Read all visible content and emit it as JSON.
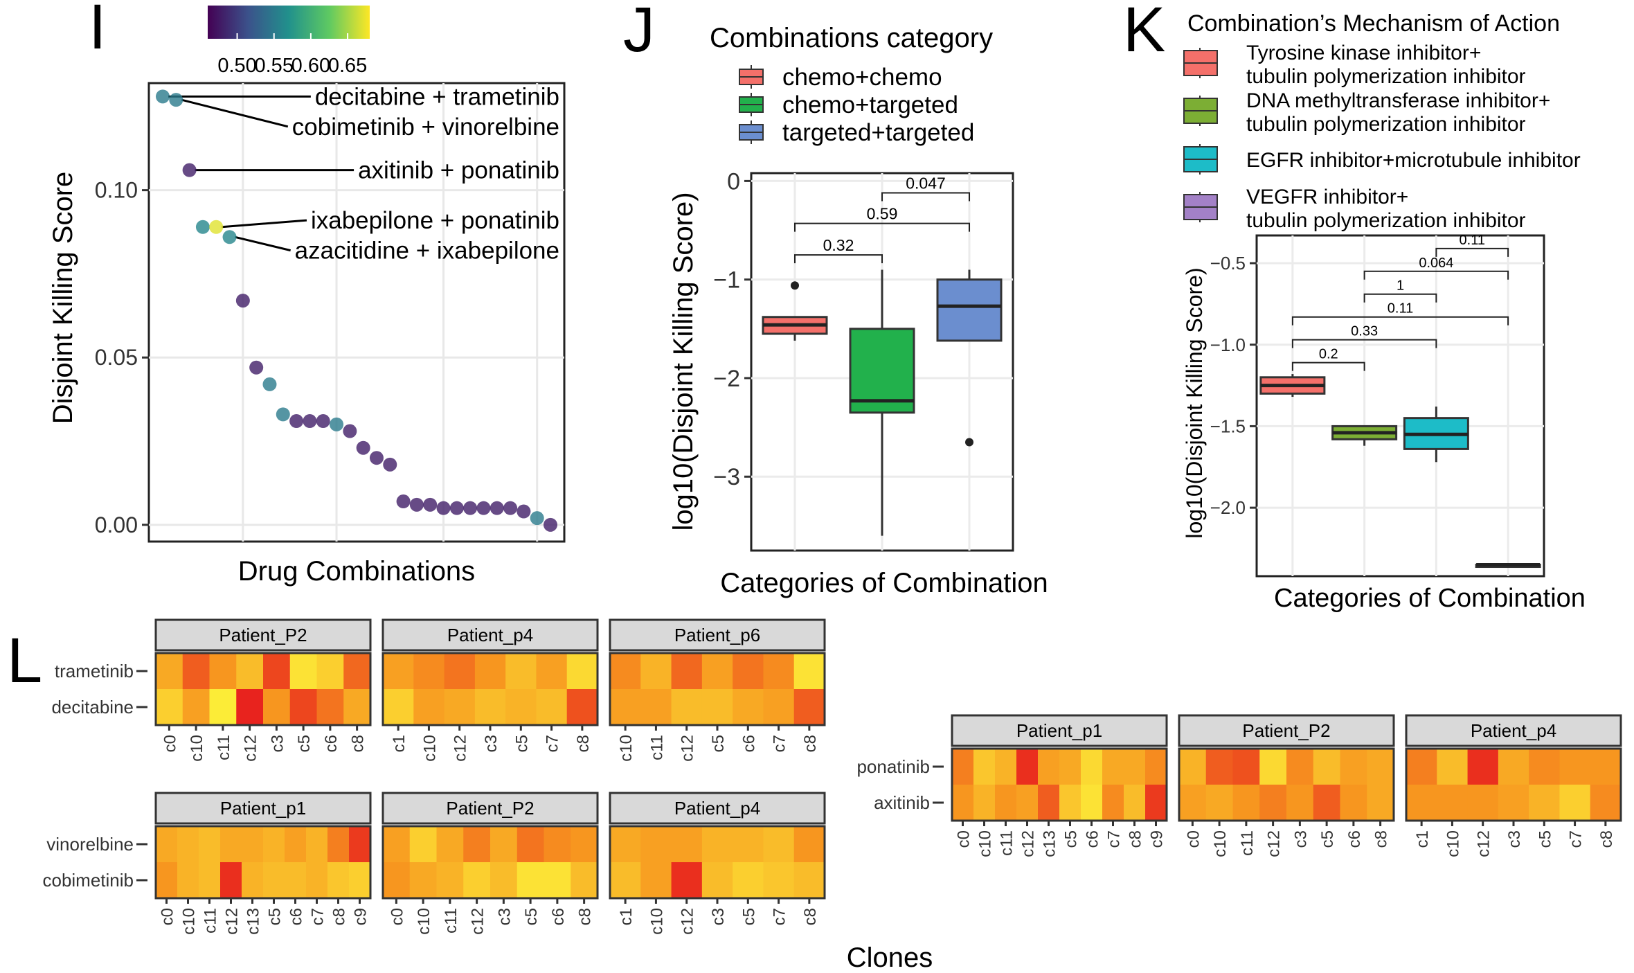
{
  "panel_labels": [
    "I",
    "J",
    "K",
    "L"
  ],
  "colors": {
    "viridis": [
      "#440154",
      "#3b528b",
      "#21918c",
      "#5ec962",
      "#fde725"
    ],
    "chemo_chemo": "#f4706a",
    "chemo_targeted": "#22b14c",
    "targeted_targeted": "#6b8ecf",
    "tki": "#f4706a",
    "dnmt": "#7cae34",
    "egfr": "#1dbcc8",
    "vegfr": "#a381c7",
    "heat_low": "#fdf53a",
    "heat_high": "#e8231e"
  },
  "chart_data": [
    {
      "id": "I",
      "type": "scatter",
      "xlabel": "Drug Combinations",
      "ylabel": "Disjoint Killing Score",
      "ylim": [
        -0.005,
        0.132
      ],
      "yticks": [
        0.0,
        0.05,
        0.1
      ],
      "ytick_labels": [
        "0.00",
        "0.05",
        "0.10"
      ],
      "colorbar": {
        "ticks": [
          "0.50",
          "0.55",
          "0.60",
          "0.65"
        ],
        "range": [
          0.46,
          0.68
        ]
      },
      "x": [
        1,
        2,
        3,
        4,
        5,
        6,
        7,
        8,
        9,
        10,
        11,
        12,
        13,
        14,
        15,
        16,
        17,
        18,
        19,
        20,
        21,
        22,
        23,
        24,
        25,
        26,
        27,
        28,
        29,
        30
      ],
      "y": [
        0.128,
        0.127,
        0.106,
        0.089,
        0.089,
        0.086,
        0.067,
        0.047,
        0.042,
        0.033,
        0.031,
        0.031,
        0.031,
        0.03,
        0.028,
        0.023,
        0.02,
        0.018,
        0.007,
        0.006,
        0.006,
        0.005,
        0.005,
        0.005,
        0.005,
        0.005,
        0.005,
        0.004,
        0.002,
        0.0
      ],
      "color_values": [
        0.55,
        0.55,
        0.48,
        0.56,
        0.67,
        0.56,
        0.48,
        0.48,
        0.55,
        0.55,
        0.48,
        0.48,
        0.48,
        0.55,
        0.48,
        0.48,
        0.48,
        0.48,
        0.48,
        0.48,
        0.48,
        0.48,
        0.48,
        0.48,
        0.48,
        0.48,
        0.48,
        0.48,
        0.55,
        0.48
      ],
      "annotations": [
        {
          "text": "decitabine + trametinib",
          "point": 1,
          "label_y": 0.128
        },
        {
          "text": "cobimetinib + vinorelbine",
          "point": 2,
          "label_y": 0.119
        },
        {
          "text": "axitinib + ponatinib",
          "point": 3,
          "label_y": 0.106
        },
        {
          "text": "ixabepilone + ponatinib",
          "point": 5,
          "label_y": 0.091
        },
        {
          "text": "azacitidine + ixabepilone",
          "point": 6,
          "label_y": 0.082
        }
      ]
    },
    {
      "id": "J",
      "type": "box",
      "xlabel": "Categories of Combination",
      "ylabel": "log10(Disjoint Killing Score)",
      "ylim": [
        -3.75,
        0.08
      ],
      "yticks": [
        0,
        -1,
        -2,
        -3
      ],
      "ytick_labels": [
        "0",
        "−1",
        "−2",
        "−3"
      ],
      "legend_title": "Combinations category",
      "legend_position": "top",
      "series": [
        {
          "name": "chemo+chemo",
          "color_key": "chemo_chemo",
          "whisker_low": -1.62,
          "q1": -1.55,
          "median": -1.46,
          "q3": -1.38,
          "whisker_high": -1.38,
          "outliers": [
            -1.06
          ]
        },
        {
          "name": "chemo+targeted",
          "color_key": "chemo_targeted",
          "whisker_low": -3.6,
          "q1": -2.35,
          "median": -2.23,
          "q3": -1.5,
          "whisker_high": -0.9,
          "outliers": []
        },
        {
          "name": "targeted+targeted",
          "color_key": "targeted_targeted",
          "whisker_low": -1.62,
          "q1": -1.62,
          "median": -1.27,
          "q3": -1.0,
          "whisker_high": -0.9,
          "outliers": [
            -2.65
          ]
        }
      ],
      "comparisons": [
        {
          "from": 1,
          "to": 2,
          "label": "0.32",
          "y": -0.75
        },
        {
          "from": 1,
          "to": 3,
          "label": "0.59",
          "y": -0.43
        },
        {
          "from": 2,
          "to": 3,
          "label": "0.047",
          "y": -0.12
        }
      ]
    },
    {
      "id": "K",
      "type": "box",
      "xlabel": "Categories of Combination",
      "ylabel": "log10(Disjoint Killing Score)",
      "ylim": [
        -2.42,
        -0.33
      ],
      "yticks": [
        -0.5,
        -1.0,
        -1.5,
        -2.0
      ],
      "ytick_labels": [
        "−0.5",
        "−1.0",
        "−1.5",
        "−2.0"
      ],
      "legend_title": "Combination’s Mechanism of Action",
      "legend_position": "top",
      "series": [
        {
          "name": [
            "Tyrosine kinase inhibitor+",
            "tubulin polymerization inhibitor"
          ],
          "color_key": "tki",
          "whisker_low": -1.32,
          "q1": -1.3,
          "median": -1.25,
          "q3": -1.2,
          "whisker_high": -1.18,
          "outliers": []
        },
        {
          "name": [
            "DNA methyltransferase inhibitor+",
            "tubulin polymerization inhibitor"
          ],
          "color_key": "dnmt",
          "whisker_low": -1.62,
          "q1": -1.58,
          "median": -1.54,
          "q3": -1.5,
          "whisker_high": -1.5,
          "outliers": []
        },
        {
          "name": [
            "EGFR inhibitor+microtubule inhibitor"
          ],
          "color_key": "egfr",
          "whisker_low": -1.72,
          "q1": -1.64,
          "median": -1.55,
          "q3": -1.45,
          "whisker_high": -1.38,
          "outliers": []
        },
        {
          "name": [
            "VEGFR inhibitor+",
            "tubulin polymerization inhibitor"
          ],
          "color_key": "vegfr",
          "whisker_low": -2.35,
          "q1": -2.35,
          "median": -2.35,
          "q3": -2.35,
          "whisker_high": -2.35,
          "outliers": []
        }
      ],
      "comparisons": [
        {
          "from": 1,
          "to": 2,
          "label": "0.2",
          "y": -1.11
        },
        {
          "from": 1,
          "to": 3,
          "label": "0.33",
          "y": -0.97
        },
        {
          "from": 1,
          "to": 4,
          "label": "0.11",
          "y": -0.83
        },
        {
          "from": 2,
          "to": 3,
          "label": "1",
          "y": -0.69
        },
        {
          "from": 2,
          "to": 4,
          "label": "0.064",
          "y": -0.55
        },
        {
          "from": 3,
          "to": 4,
          "label": "0.11",
          "y": -0.41
        }
      ]
    },
    {
      "id": "L",
      "type": "heatmap",
      "xlabel": "Clones",
      "groups": [
        {
          "rows": [
            "trametinib",
            "decitabine"
          ],
          "panels": [
            {
              "title": "Patient_P2",
              "clones": [
                "c0",
                "c10",
                "c11",
                "c12",
                "c3",
                "c5",
                "c6",
                "c8"
              ],
              "values": [
                [
                  0.4,
                  0.75,
                  0.5,
                  0.3,
                  0.85,
                  0.1,
                  0.2,
                  0.7
                ],
                [
                  0.2,
                  0.45,
                  0.05,
                  1.0,
                  0.5,
                  0.85,
                  0.65,
                  0.4
                ]
              ]
            },
            {
              "title": "Patient_p4",
              "clones": [
                "c1",
                "c10",
                "c12",
                "c3",
                "c5",
                "c7",
                "c8"
              ],
              "values": [
                [
                  0.45,
                  0.55,
                  0.65,
                  0.5,
                  0.3,
                  0.45,
                  0.15
                ],
                [
                  0.2,
                  0.45,
                  0.4,
                  0.3,
                  0.35,
                  0.3,
                  0.8
                ]
              ]
            },
            {
              "title": "Patient_p6",
              "clones": [
                "c10",
                "c11",
                "c12",
                "c5",
                "c6",
                "c7",
                "c8"
              ],
              "values": [
                [
                  0.55,
                  0.35,
                  0.7,
                  0.45,
                  0.65,
                  0.55,
                  0.1
                ],
                [
                  0.45,
                  0.45,
                  0.3,
                  0.3,
                  0.4,
                  0.45,
                  0.75
                ]
              ]
            }
          ]
        },
        {
          "rows": [
            "vinorelbine",
            "cobimetinib"
          ],
          "panels": [
            {
              "title": "Patient_p1",
              "clones": [
                "c0",
                "c10",
                "c11",
                "c12",
                "c13",
                "c5",
                "c6",
                "c7",
                "c8",
                "c9"
              ],
              "values": [
                [
                  0.4,
                  0.35,
                  0.3,
                  0.4,
                  0.4,
                  0.35,
                  0.45,
                  0.35,
                  0.6,
                  0.9
                ],
                [
                  0.5,
                  0.35,
                  0.3,
                  0.95,
                  0.35,
                  0.3,
                  0.3,
                  0.35,
                  0.25,
                  0.2
                ]
              ]
            },
            {
              "title": "Patient_P2",
              "clones": [
                "c0",
                "c10",
                "c11",
                "c12",
                "c3",
                "c5",
                "c6",
                "c8"
              ],
              "values": [
                [
                  0.45,
                  0.2,
                  0.4,
                  0.6,
                  0.4,
                  0.65,
                  0.55,
                  0.5
                ],
                [
                  0.5,
                  0.4,
                  0.35,
                  0.2,
                  0.3,
                  0.1,
                  0.1,
                  0.3
                ]
              ]
            },
            {
              "title": "Patient_p4",
              "clones": [
                "c1",
                "c10",
                "c12",
                "c3",
                "c5",
                "c7",
                "c8"
              ],
              "values": [
                [
                  0.4,
                  0.45,
                  0.45,
                  0.35,
                  0.35,
                  0.3,
                  0.5
                ],
                [
                  0.3,
                  0.45,
                  0.95,
                  0.3,
                  0.2,
                  0.25,
                  0.3
                ]
              ]
            }
          ]
        },
        {
          "rows": [
            "ponatinib",
            "axitinib"
          ],
          "panels": [
            {
              "title": "Patient_p1",
              "clones": [
                "c0",
                "c10",
                "c11",
                "c12",
                "c13",
                "c5",
                "c6",
                "c7",
                "c8",
                "c9"
              ],
              "values": [
                [
                  0.6,
                  0.25,
                  0.35,
                  0.95,
                  0.45,
                  0.4,
                  0.15,
                  0.4,
                  0.4,
                  0.55
                ],
                [
                  0.5,
                  0.35,
                  0.5,
                  0.45,
                  0.75,
                  0.25,
                  0.1,
                  0.55,
                  0.3,
                  0.9
                ]
              ]
            },
            {
              "title": "Patient_P2",
              "clones": [
                "c0",
                "c10",
                "c11",
                "c12",
                "c3",
                "c5",
                "c6",
                "c8"
              ],
              "values": [
                [
                  0.35,
                  0.75,
                  0.8,
                  0.15,
                  0.55,
                  0.3,
                  0.45,
                  0.4
                ],
                [
                  0.45,
                  0.4,
                  0.5,
                  0.6,
                  0.5,
                  0.75,
                  0.5,
                  0.4
                ]
              ]
            },
            {
              "title": "Patient_p4",
              "clones": [
                "c1",
                "c10",
                "c12",
                "c3",
                "c5",
                "c7",
                "c8"
              ],
              "values": [
                [
                  0.6,
                  0.3,
                  0.95,
                  0.4,
                  0.55,
                  0.5,
                  0.5
                ],
                [
                  0.5,
                  0.5,
                  0.5,
                  0.45,
                  0.35,
                  0.2,
                  0.55
                ]
              ]
            }
          ]
        }
      ]
    }
  ]
}
